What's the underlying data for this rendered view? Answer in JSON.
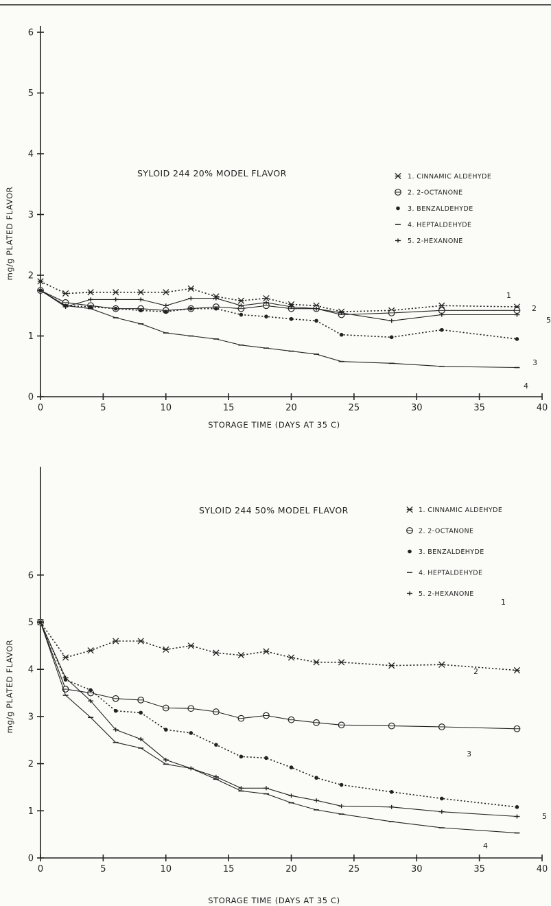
{
  "chart_data": [
    {
      "type": "line",
      "title": "SYLOID 244 20% MODEL FLAVOR",
      "xlabel": "STORAGE TIME (DAYS AT 35 C)",
      "ylabel": "mg/g PLATED FLAVOR",
      "xlim": [
        0,
        40
      ],
      "ylim": [
        0,
        6
      ],
      "xticks": [
        0,
        5,
        10,
        15,
        20,
        25,
        30,
        35,
        40
      ],
      "yticks": [
        0,
        1,
        2,
        3,
        4,
        5,
        6
      ],
      "legend_position": "right",
      "series": [
        {
          "name": "1. CINNAMIC ALDEHYDE",
          "label": "1",
          "marker": "asterisk",
          "style": "dotted",
          "x": [
            0,
            2,
            4,
            6,
            8,
            10,
            12,
            14,
            16,
            18,
            20,
            22,
            24,
            28,
            32,
            38
          ],
          "y": [
            1.9,
            1.7,
            1.72,
            1.72,
            1.72,
            1.72,
            1.78,
            1.65,
            1.58,
            1.62,
            1.52,
            1.5,
            1.4,
            1.42,
            1.5,
            1.48
          ]
        },
        {
          "name": "2. 2-OCTANONE",
          "label": "2",
          "marker": "circle",
          "style": "solid",
          "x": [
            0,
            2,
            4,
            6,
            8,
            10,
            12,
            14,
            16,
            18,
            20,
            22,
            24,
            28,
            32,
            38
          ],
          "y": [
            1.75,
            1.55,
            1.5,
            1.45,
            1.45,
            1.42,
            1.45,
            1.48,
            1.45,
            1.5,
            1.45,
            1.45,
            1.35,
            1.38,
            1.42,
            1.42
          ]
        },
        {
          "name": "3. BENZALDEHYDE",
          "label": "3",
          "marker": "dot",
          "style": "dotted",
          "x": [
            0,
            2,
            4,
            6,
            8,
            10,
            12,
            14,
            16,
            18,
            20,
            22,
            24,
            28,
            32,
            38
          ],
          "y": [
            1.75,
            1.5,
            1.48,
            1.45,
            1.42,
            1.4,
            1.45,
            1.45,
            1.35,
            1.32,
            1.28,
            1.25,
            1.02,
            0.98,
            1.1,
            0.95
          ]
        },
        {
          "name": "4. HEPTALDEHYDE",
          "label": "4",
          "marker": "dash",
          "style": "solid",
          "x": [
            0,
            2,
            4,
            6,
            8,
            10,
            12,
            14,
            16,
            18,
            20,
            22,
            24,
            28,
            32,
            38
          ],
          "y": [
            1.75,
            1.5,
            1.45,
            1.3,
            1.2,
            1.05,
            1.0,
            0.95,
            0.85,
            0.8,
            0.75,
            0.7,
            0.58,
            0.55,
            0.5,
            0.48
          ]
        },
        {
          "name": "5. 2-HEXANONE",
          "label": "5",
          "marker": "plus",
          "style": "solid",
          "x": [
            0,
            2,
            4,
            6,
            8,
            10,
            12,
            14,
            16,
            18,
            20,
            22,
            24,
            28,
            32,
            38
          ],
          "y": [
            1.75,
            1.48,
            1.6,
            1.6,
            1.6,
            1.5,
            1.62,
            1.62,
            1.5,
            1.55,
            1.48,
            1.45,
            1.38,
            1.25,
            1.35,
            1.35
          ]
        }
      ]
    },
    {
      "type": "line",
      "title": "SYLOID 244 50% MODEL FLAVOR",
      "xlabel": "STORAGE TIME (DAYS AT 35 C)",
      "ylabel": "mg/g PLATED FLAVOR",
      "xlim": [
        0,
        40
      ],
      "ylim": [
        0,
        6
      ],
      "xticks": [
        0,
        5,
        10,
        15,
        20,
        25,
        30,
        35,
        40
      ],
      "yticks": [
        0,
        1,
        2,
        3,
        4,
        5,
        6
      ],
      "legend_position": "top-right",
      "series": [
        {
          "name": "1. CINNAMIC ALDEHYDE",
          "label": "1",
          "marker": "asterisk",
          "style": "dotted",
          "x": [
            0,
            2,
            4,
            6,
            8,
            10,
            12,
            14,
            16,
            18,
            20,
            22,
            24,
            28,
            32,
            38
          ],
          "y": [
            5.0,
            4.25,
            4.4,
            4.6,
            4.6,
            4.42,
            4.5,
            4.35,
            4.3,
            4.38,
            4.25,
            4.15,
            4.15,
            4.08,
            4.1,
            3.98
          ]
        },
        {
          "name": "2. 2-OCTANONE",
          "label": "2",
          "marker": "circle",
          "style": "solid",
          "x": [
            0,
            2,
            4,
            6,
            8,
            10,
            12,
            14,
            16,
            18,
            20,
            22,
            24,
            28,
            32,
            38
          ],
          "y": [
            5.0,
            3.58,
            3.5,
            3.38,
            3.35,
            3.18,
            3.17,
            3.1,
            2.96,
            3.02,
            2.93,
            2.87,
            2.82,
            2.8,
            2.78,
            2.74
          ]
        },
        {
          "name": "3. BENZALDEHYDE",
          "label": "3",
          "marker": "dot",
          "style": "dotted",
          "x": [
            0,
            2,
            4,
            6,
            8,
            10,
            12,
            14,
            16,
            18,
            20,
            22,
            24,
            28,
            32,
            38
          ],
          "y": [
            5.0,
            3.78,
            3.56,
            3.12,
            3.08,
            2.72,
            2.65,
            2.4,
            2.15,
            2.12,
            1.92,
            1.7,
            1.55,
            1.4,
            1.26,
            1.08
          ]
        },
        {
          "name": "4. HEPTALDEHYDE",
          "label": "4",
          "marker": "dash",
          "style": "solid",
          "x": [
            0,
            2,
            4,
            6,
            8,
            10,
            12,
            14,
            16,
            18,
            20,
            22,
            24,
            28,
            32,
            38
          ],
          "y": [
            5.0,
            3.45,
            2.98,
            2.45,
            2.33,
            1.99,
            1.9,
            1.67,
            1.42,
            1.36,
            1.17,
            1.02,
            0.93,
            0.77,
            0.64,
            0.53
          ]
        },
        {
          "name": "5. 2-HEXANONE",
          "label": "5",
          "marker": "plus",
          "style": "solid",
          "x": [
            0,
            2,
            4,
            6,
            8,
            10,
            12,
            14,
            16,
            18,
            20,
            22,
            24,
            28,
            32,
            38
          ],
          "y": [
            5.0,
            3.82,
            3.33,
            2.72,
            2.52,
            2.08,
            1.9,
            1.72,
            1.48,
            1.48,
            1.32,
            1.22,
            1.1,
            1.08,
            0.98,
            0.88
          ]
        }
      ]
    }
  ]
}
